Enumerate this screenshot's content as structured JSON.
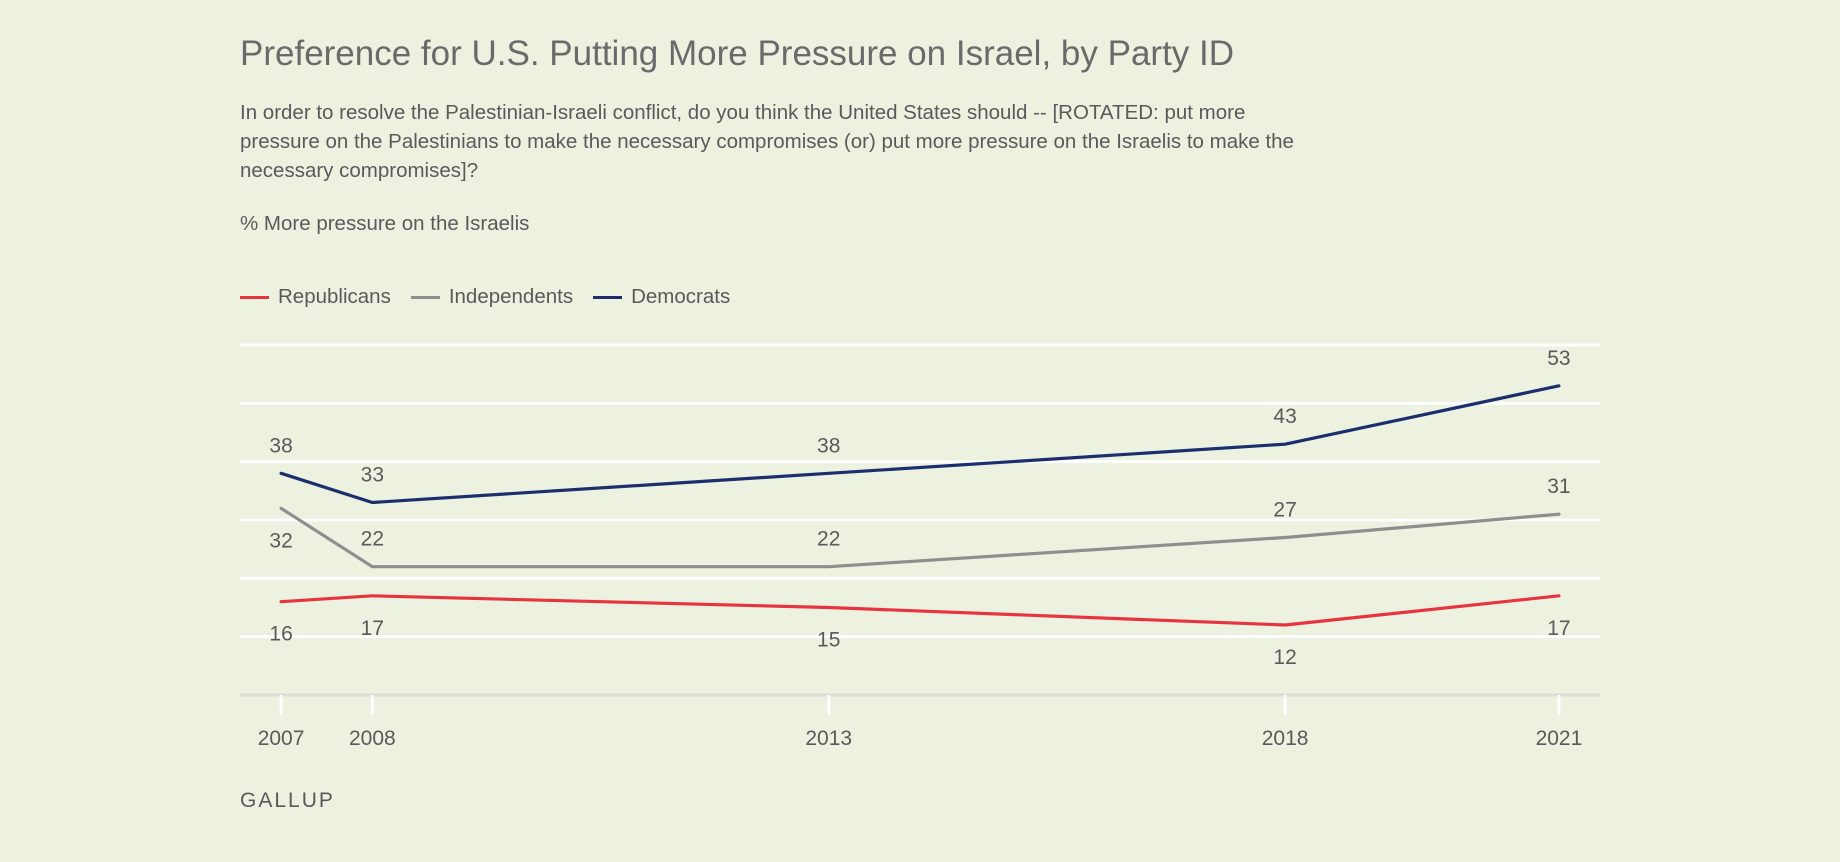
{
  "title": "Preference for U.S. Putting More Pressure on Israel, by Party ID",
  "question": "In order to resolve the Palestinian-Israeli conflict, do you think the United States should -- [ROTATED: put more pressure on the Palestinians to make the necessary compromises (or) put more pressure on the Israelis to make the necessary compromises]?",
  "metric": "% More pressure on the Israelis",
  "source": "GALLUP",
  "chart_data": {
    "type": "line",
    "title": "Preference for U.S. Putting More Pressure on Israel, by Party ID",
    "xlabel": "",
    "ylabel": "% More pressure on the Israelis",
    "x": [
      2007,
      2008,
      2013,
      2018,
      2021
    ],
    "xlim": [
      2006.55,
      2021.45
    ],
    "ylim": [
      0,
      60
    ],
    "yticks": [
      0,
      10,
      20,
      30,
      40,
      50,
      60
    ],
    "grid": true,
    "legend_position": "top-left",
    "series": [
      {
        "name": "Republicans",
        "color": "#e8343f",
        "values": [
          16,
          17,
          15,
          12,
          17
        ],
        "label_pos": [
          "below",
          "below",
          "below",
          "below",
          "below"
        ]
      },
      {
        "name": "Independents",
        "color": "#8e8e8e",
        "values": [
          32,
          22,
          22,
          27,
          31
        ],
        "label_pos": [
          "below",
          "above",
          "above",
          "above",
          "above"
        ]
      },
      {
        "name": "Democrats",
        "color": "#1b2f6e",
        "values": [
          38,
          33,
          38,
          43,
          53
        ],
        "label_pos": [
          "above",
          "above",
          "above",
          "above",
          "above"
        ]
      }
    ]
  }
}
